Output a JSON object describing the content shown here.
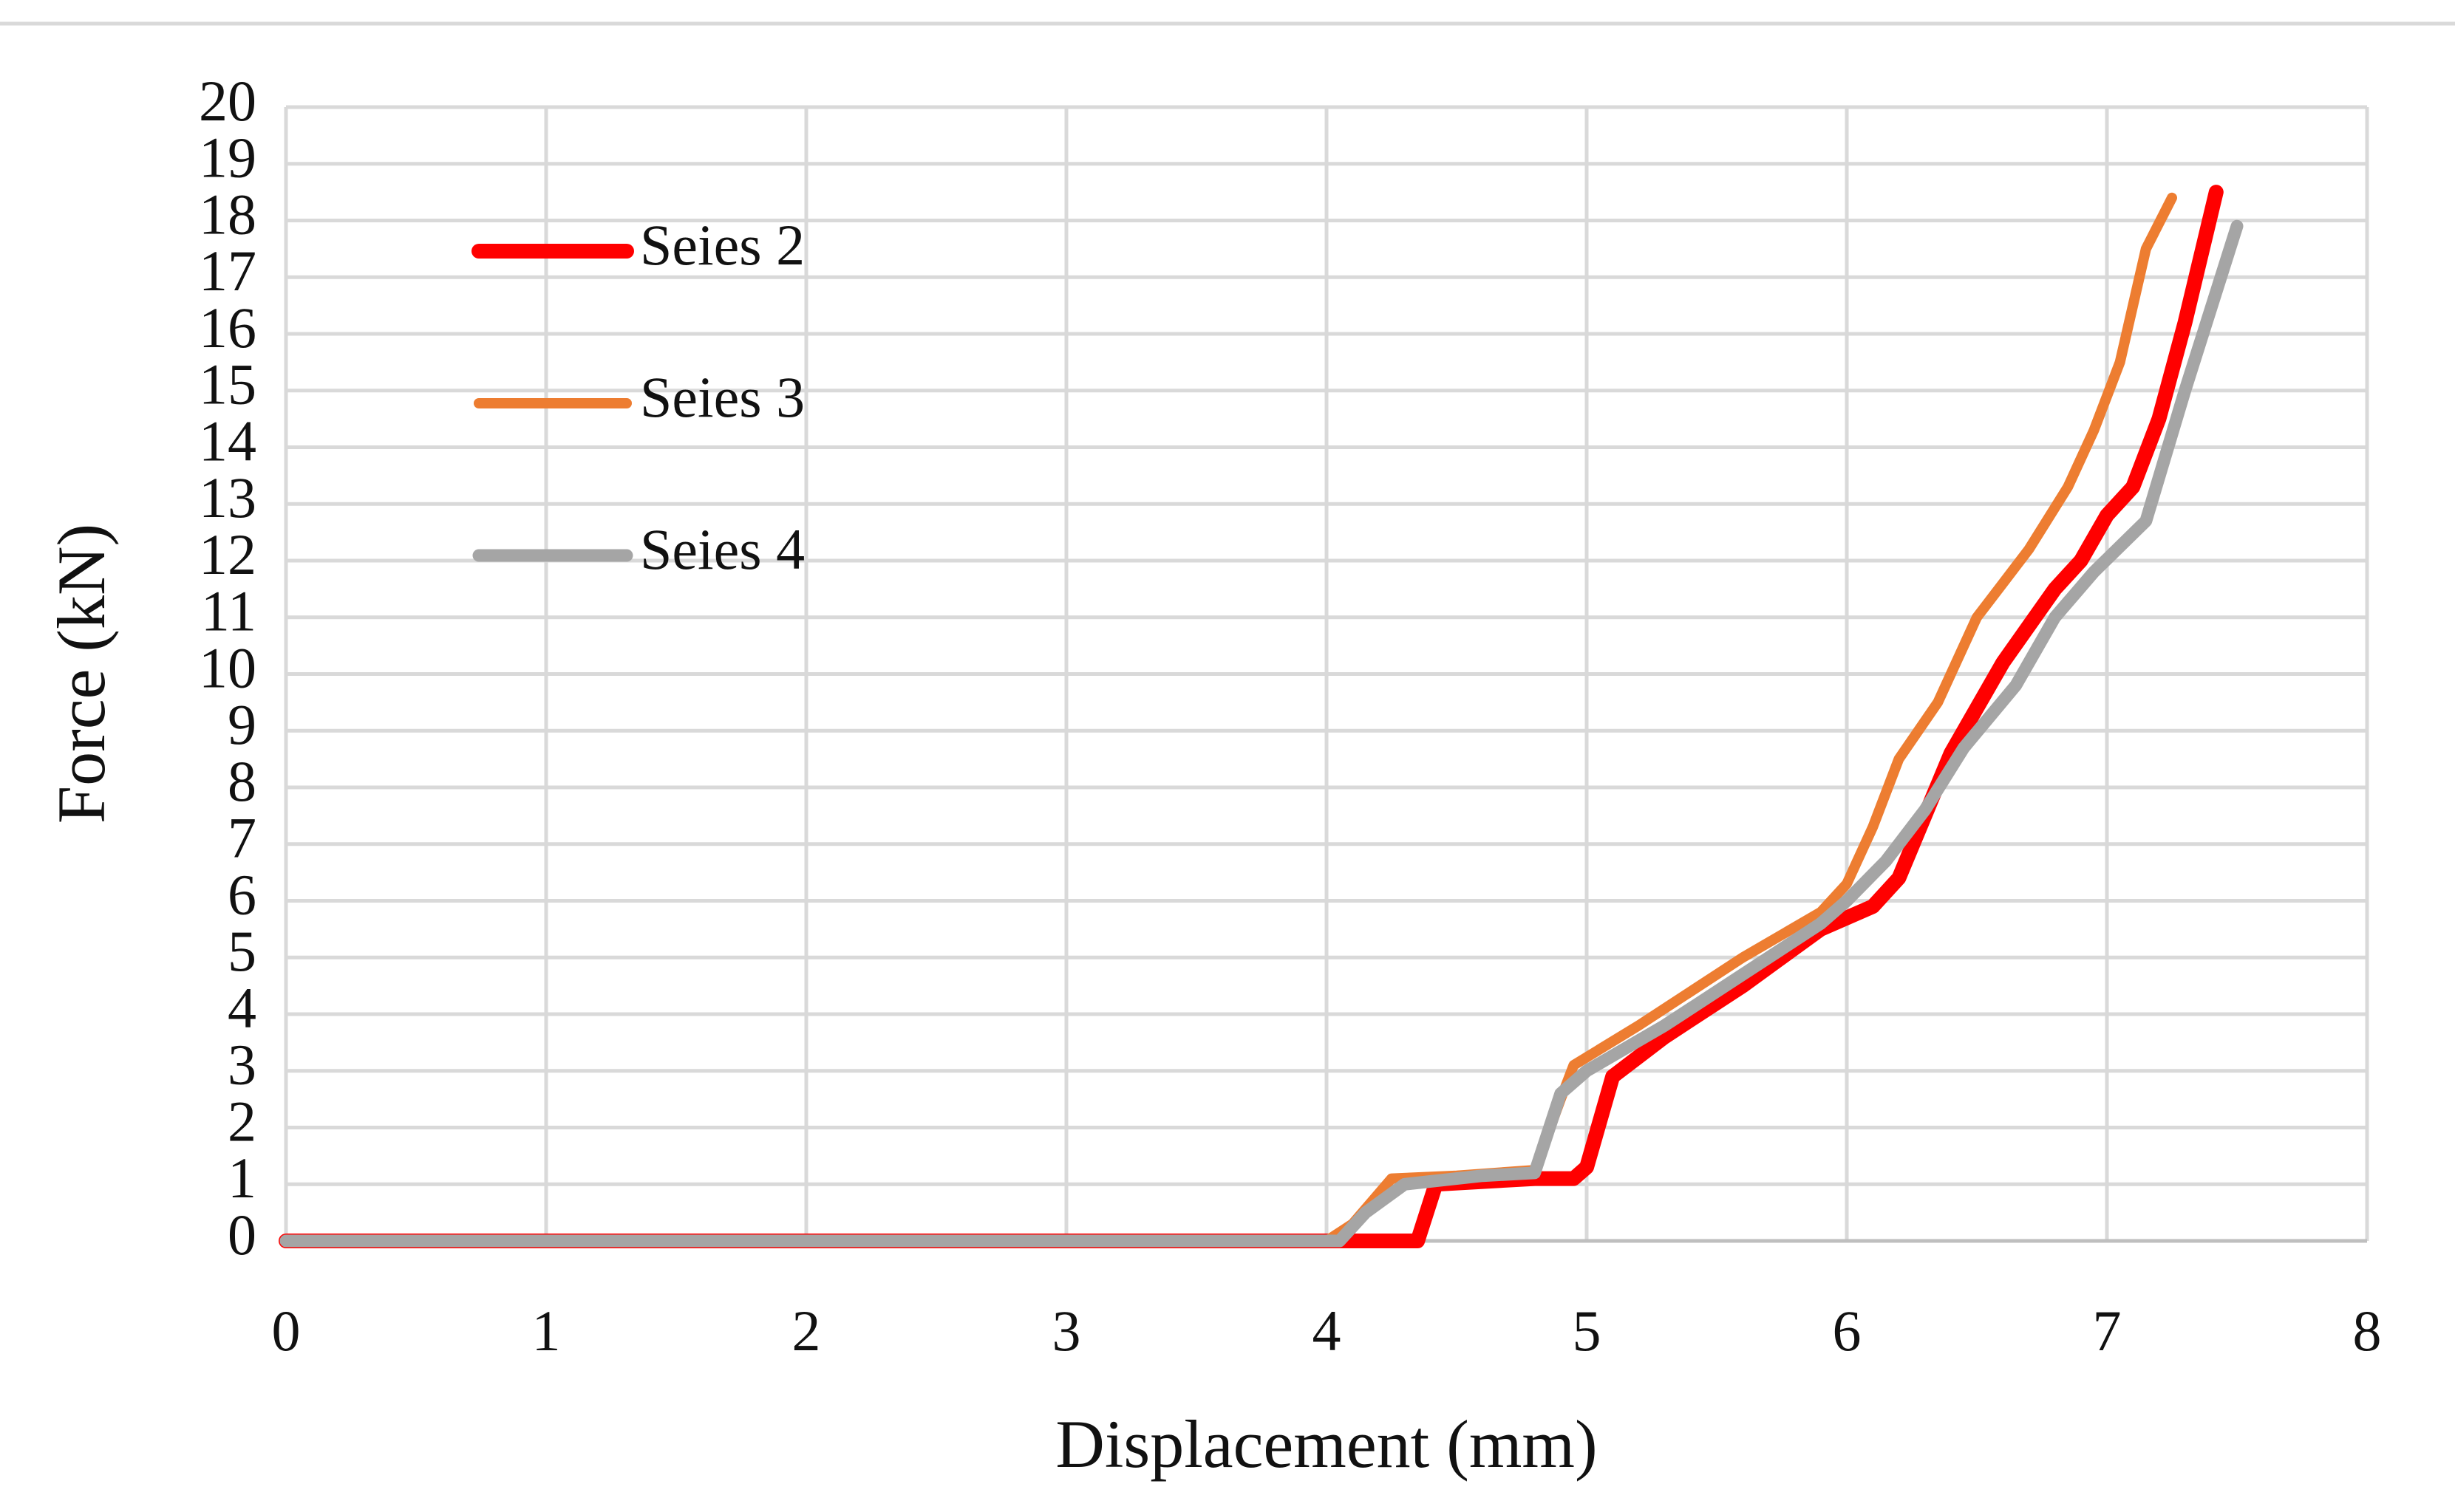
{
  "chart_data": {
    "type": "line",
    "xlabel": "Displacement (mm)",
    "ylabel": "Force (kN)",
    "xlim": [
      0,
      8
    ],
    "ylim": [
      0,
      20
    ],
    "xticks": [
      0,
      1,
      2,
      3,
      4,
      5,
      6,
      7,
      8
    ],
    "yticks": [
      0,
      1,
      2,
      3,
      4,
      5,
      6,
      7,
      8,
      9,
      10,
      11,
      12,
      13,
      14,
      15,
      16,
      17,
      18,
      19,
      20
    ],
    "grid": true,
    "legend": "upper left",
    "series": [
      {
        "name": "Seies 2",
        "color": "#ff0000",
        "x": [
          0,
          4.1,
          4.35,
          4.42,
          4.8,
          4.95,
          5.0,
          5.1,
          5.3,
          5.6,
          5.9,
          6.1,
          6.2,
          6.3,
          6.4,
          6.6,
          6.8,
          6.9,
          7.0,
          7.1,
          7.2,
          7.3,
          7.42
        ],
        "values": [
          0,
          0,
          0,
          1.0,
          1.1,
          1.1,
          1.3,
          2.9,
          3.6,
          4.5,
          5.5,
          5.9,
          6.4,
          7.5,
          8.6,
          10.2,
          11.5,
          12.0,
          12.8,
          13.3,
          14.5,
          16.2,
          18.5
        ]
      },
      {
        "name": "Seies 3",
        "color": "#ed7d31",
        "x": [
          0,
          4.0,
          4.1,
          4.25,
          4.5,
          4.8,
          4.9,
          4.95,
          5.2,
          5.6,
          5.9,
          6.0,
          6.1,
          6.2,
          6.35,
          6.5,
          6.6,
          6.7,
          6.85,
          6.95,
          7.05,
          7.15,
          7.25
        ],
        "values": [
          0,
          0,
          0.3,
          1.1,
          1.15,
          1.25,
          2.5,
          3.1,
          3.8,
          5.0,
          5.8,
          6.3,
          7.3,
          8.5,
          9.5,
          11.0,
          11.6,
          12.2,
          13.3,
          14.3,
          15.5,
          17.5,
          18.4
        ]
      },
      {
        "name": "Seies 4",
        "color": "#a5a5a5",
        "x": [
          0,
          4.05,
          4.15,
          4.3,
          4.6,
          4.8,
          4.9,
          5.0,
          5.3,
          5.6,
          5.9,
          6.0,
          6.15,
          6.3,
          6.45,
          6.65,
          6.8,
          6.95,
          7.15,
          7.3,
          7.5
        ],
        "values": [
          0,
          0,
          0.5,
          1.0,
          1.15,
          1.2,
          2.6,
          3.0,
          3.8,
          4.7,
          5.6,
          6.0,
          6.7,
          7.6,
          8.7,
          9.8,
          11.0,
          11.8,
          12.7,
          15.0,
          17.9
        ]
      }
    ]
  }
}
